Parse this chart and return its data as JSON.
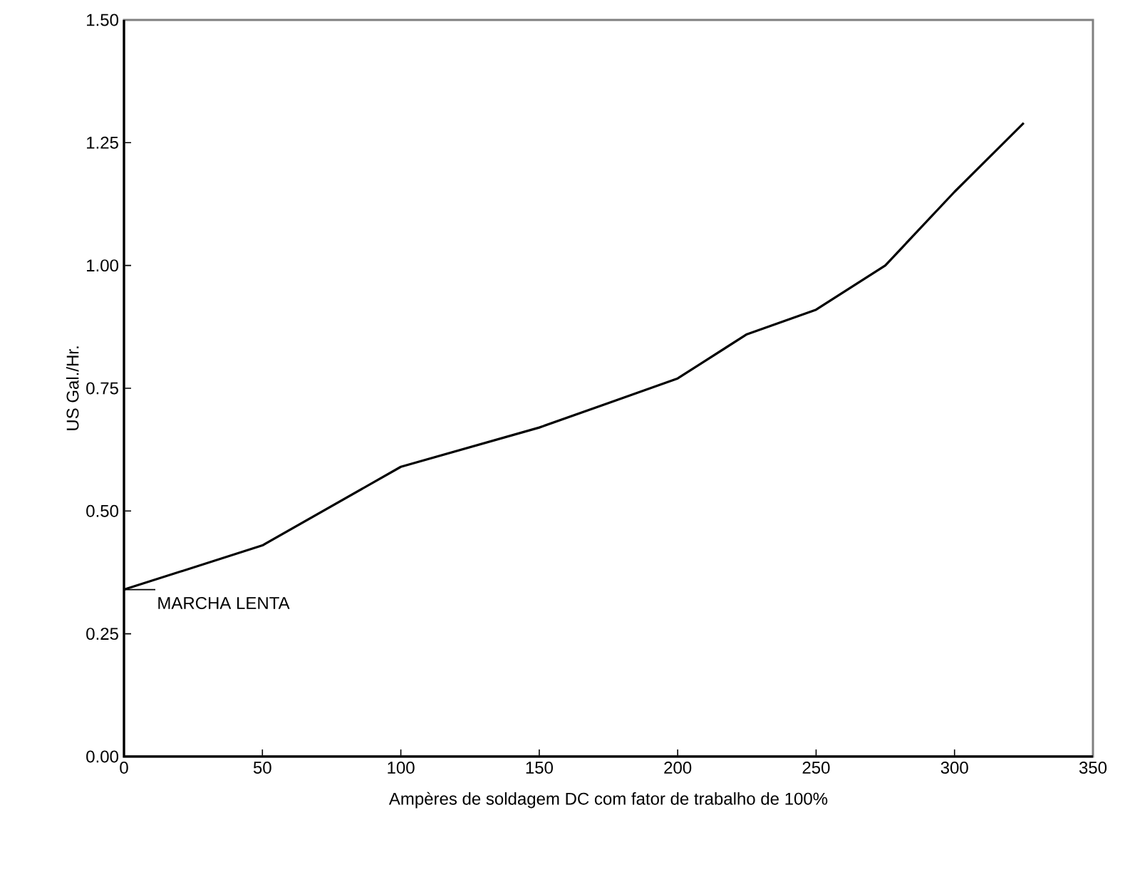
{
  "chart_data": {
    "type": "line",
    "xlabel": "Ampères de soldagem DC com fator de trabalho de 100%",
    "ylabel": "US Gal./Hr.",
    "x": [
      0,
      50,
      100,
      150,
      175,
      200,
      225,
      250,
      275,
      300,
      325
    ],
    "series": [
      {
        "color": "#000000",
        "values": [
          0.34,
          0.43,
          0.59,
          0.67,
          0.72,
          0.77,
          0.86,
          0.91,
          1.0,
          1.15,
          1.29
        ]
      }
    ],
    "xlim": [
      0,
      350
    ],
    "xticks": [
      0,
      50,
      100,
      150,
      200,
      250,
      300,
      350
    ],
    "ylim": [
      0,
      1.5
    ],
    "yticks": [
      {
        "value": 0,
        "label": "0.00"
      },
      {
        "value": 0.25,
        "label": "0.25"
      },
      {
        "value": 0.5,
        "label": "0.50"
      },
      {
        "value": 0.75,
        "label": "0.75"
      },
      {
        "value": 1.0,
        "label": "1.00"
      },
      {
        "value": 1.25,
        "label": "1.25"
      },
      {
        "value": 1.5,
        "label": "1.50"
      }
    ],
    "annotations": [
      {
        "text": "MARCHA LENTA",
        "x": 0,
        "y": 0.34
      }
    ],
    "grid": false,
    "marker": "none",
    "line_style": "solid"
  }
}
